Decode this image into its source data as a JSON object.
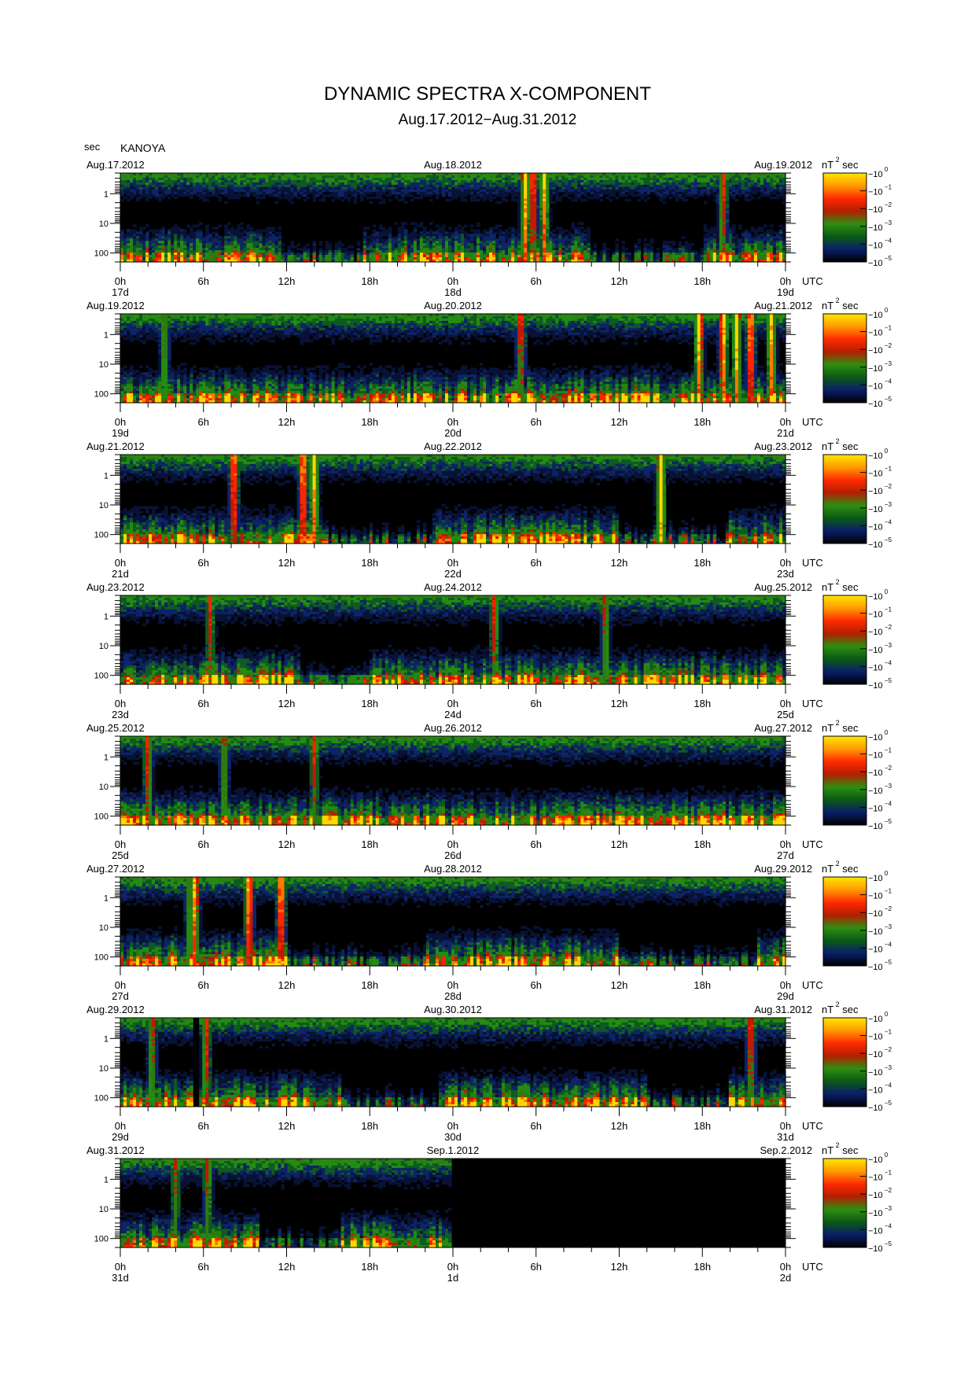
{
  "title": "DYNAMIC SPECTRA X-COMPONENT",
  "subtitle": "Aug.17.2012−Aug.31.2012",
  "y_unit": "sec",
  "station": "KANOYA",
  "colorbar": {
    "unit_base": "nT",
    "unit_exp": "2",
    "unit_suffix": "sec",
    "base": "10",
    "exponents": [
      "0",
      "−1",
      "−2",
      "−3",
      "−4",
      "−5"
    ],
    "colors": [
      "#ffe600",
      "#ff9a00",
      "#ff2a00",
      "#b41e00",
      "#2e8e10",
      "#0a5a14",
      "#0a1e6a",
      "#000000"
    ]
  },
  "x_tick_labels": [
    "0h",
    "6h",
    "12h",
    "18h",
    "0h",
    "6h",
    "12h",
    "18h",
    "0h"
  ],
  "x_unit": "UTC",
  "y_tick_labels": [
    "1",
    "10",
    "100"
  ],
  "chart_data": {
    "type": "heatmap",
    "title": "DYNAMIC SPECTRA X-COMPONENT",
    "subtitle": "Aug.17.2012−Aug.31.2012",
    "ylabel": "sec",
    "y_scale": "log",
    "ylim_sec": [
      0.2,
      200
    ],
    "y_ticks": [
      1,
      10,
      100
    ],
    "x_ticks_hours": [
      0,
      6,
      12,
      18,
      24,
      30,
      36,
      42,
      48
    ],
    "color_scale": "log",
    "color_range": [
      1e-05,
      1
    ],
    "color_unit": "nT² sec",
    "panels": [
      {
        "date_left": "Aug.17.2012",
        "date_mid": "Aug.18.2012",
        "date_right": "Aug.19.2012",
        "day_left": "17d",
        "day_mid": "18d",
        "day_right": "19d",
        "events": [
          {
            "t": 29.2,
            "p": 0.95
          },
          {
            "t": 29.8,
            "p": 0.9
          },
          {
            "t": 30.6,
            "p": 0.85
          },
          {
            "t": 43.5,
            "p": 0.8
          }
        ],
        "quiet": [
          [
            11.5,
            17.5
          ],
          [
            34,
            42
          ]
        ],
        "nodata": []
      },
      {
        "date_left": "Aug.19.2012",
        "date_mid": "Aug.20.2012",
        "date_right": "Aug.21.2012",
        "day_left": "19d",
        "day_mid": "20d",
        "day_right": "21d",
        "events": [
          {
            "t": 3.2,
            "p": 0.7
          },
          {
            "t": 28.9,
            "p": 0.85
          },
          {
            "t": 41.8,
            "p": 1.0
          },
          {
            "t": 43.5,
            "p": 1.0
          },
          {
            "t": 44.5,
            "p": 0.95
          },
          {
            "t": 45.5,
            "p": 1.0
          },
          {
            "t": 47.0,
            "p": 0.9
          }
        ],
        "quiet": [],
        "nodata": []
      },
      {
        "date_left": "Aug.21.2012",
        "date_mid": "Aug.22.2012",
        "date_right": "Aug.23.2012",
        "day_left": "21d",
        "day_mid": "22d",
        "day_right": "23d",
        "events": [
          {
            "t": 8.2,
            "p": 0.95
          },
          {
            "t": 13.2,
            "p": 1.0
          },
          {
            "t": 14.0,
            "p": 0.9
          },
          {
            "t": 39.0,
            "p": 1.0
          }
        ],
        "quiet": [
          [
            14.5,
            22.5
          ],
          [
            36,
            44
          ]
        ],
        "nodata": []
      },
      {
        "date_left": "Aug.23.2012",
        "date_mid": "Aug.24.2012",
        "date_right": "Aug.25.2012",
        "day_left": "23d",
        "day_mid": "24d",
        "day_right": "25d",
        "events": [
          {
            "t": 6.5,
            "p": 0.7
          },
          {
            "t": 27.0,
            "p": 0.75
          },
          {
            "t": 35.0,
            "p": 0.75
          }
        ],
        "quiet": [
          [
            13,
            18
          ]
        ],
        "nodata": []
      },
      {
        "date_left": "Aug.25.2012",
        "date_mid": "Aug.26.2012",
        "date_right": "Aug.27.2012",
        "day_left": "25d",
        "day_mid": "26d",
        "day_right": "27d",
        "events": [
          {
            "t": 2.0,
            "p": 0.8
          },
          {
            "t": 7.5,
            "p": 0.75
          },
          {
            "t": 14.0,
            "p": 0.7
          }
        ],
        "quiet": [],
        "nodata": []
      },
      {
        "date_left": "Aug.27.2012",
        "date_mid": "Aug.28.2012",
        "date_right": "Aug.29.2012",
        "day_left": "27d",
        "day_mid": "28d",
        "day_right": "29d",
        "events": [
          {
            "t": 5.4,
            "p": 0.95
          },
          {
            "t": 9.3,
            "p": 1.0
          },
          {
            "t": 11.6,
            "p": 1.0
          },
          {
            "t": 5.0,
            "p": 0.7
          }
        ],
        "quiet": [
          [
            12,
            22
          ],
          [
            36,
            46
          ]
        ],
        "nodata": []
      },
      {
        "date_left": "Aug.29.2012",
        "date_mid": "Aug.30.2012",
        "date_right": "Aug.31.2012",
        "day_left": "29d",
        "day_mid": "30d",
        "day_right": "31d",
        "events": [
          {
            "t": 2.3,
            "p": 0.75
          },
          {
            "t": 6.2,
            "p": 0.8
          },
          {
            "t": 45.5,
            "p": 0.85
          }
        ],
        "quiet": [
          [
            16,
            23
          ],
          [
            38,
            44
          ]
        ],
        "nodata": [
          [
            5.2,
            5.6
          ]
        ]
      },
      {
        "date_left": "Aug.31.2012",
        "date_mid": "Sep.1.2012",
        "date_right": "Sep.2.2012",
        "day_left": "31d",
        "day_mid": "1d",
        "day_right": "2d",
        "events": [
          {
            "t": 6.3,
            "p": 0.7
          },
          {
            "t": 4.0,
            "p": 0.65
          }
        ],
        "quiet": [
          [
            10,
            16
          ]
        ],
        "nodata": [
          [
            24,
            48
          ]
        ]
      }
    ]
  }
}
